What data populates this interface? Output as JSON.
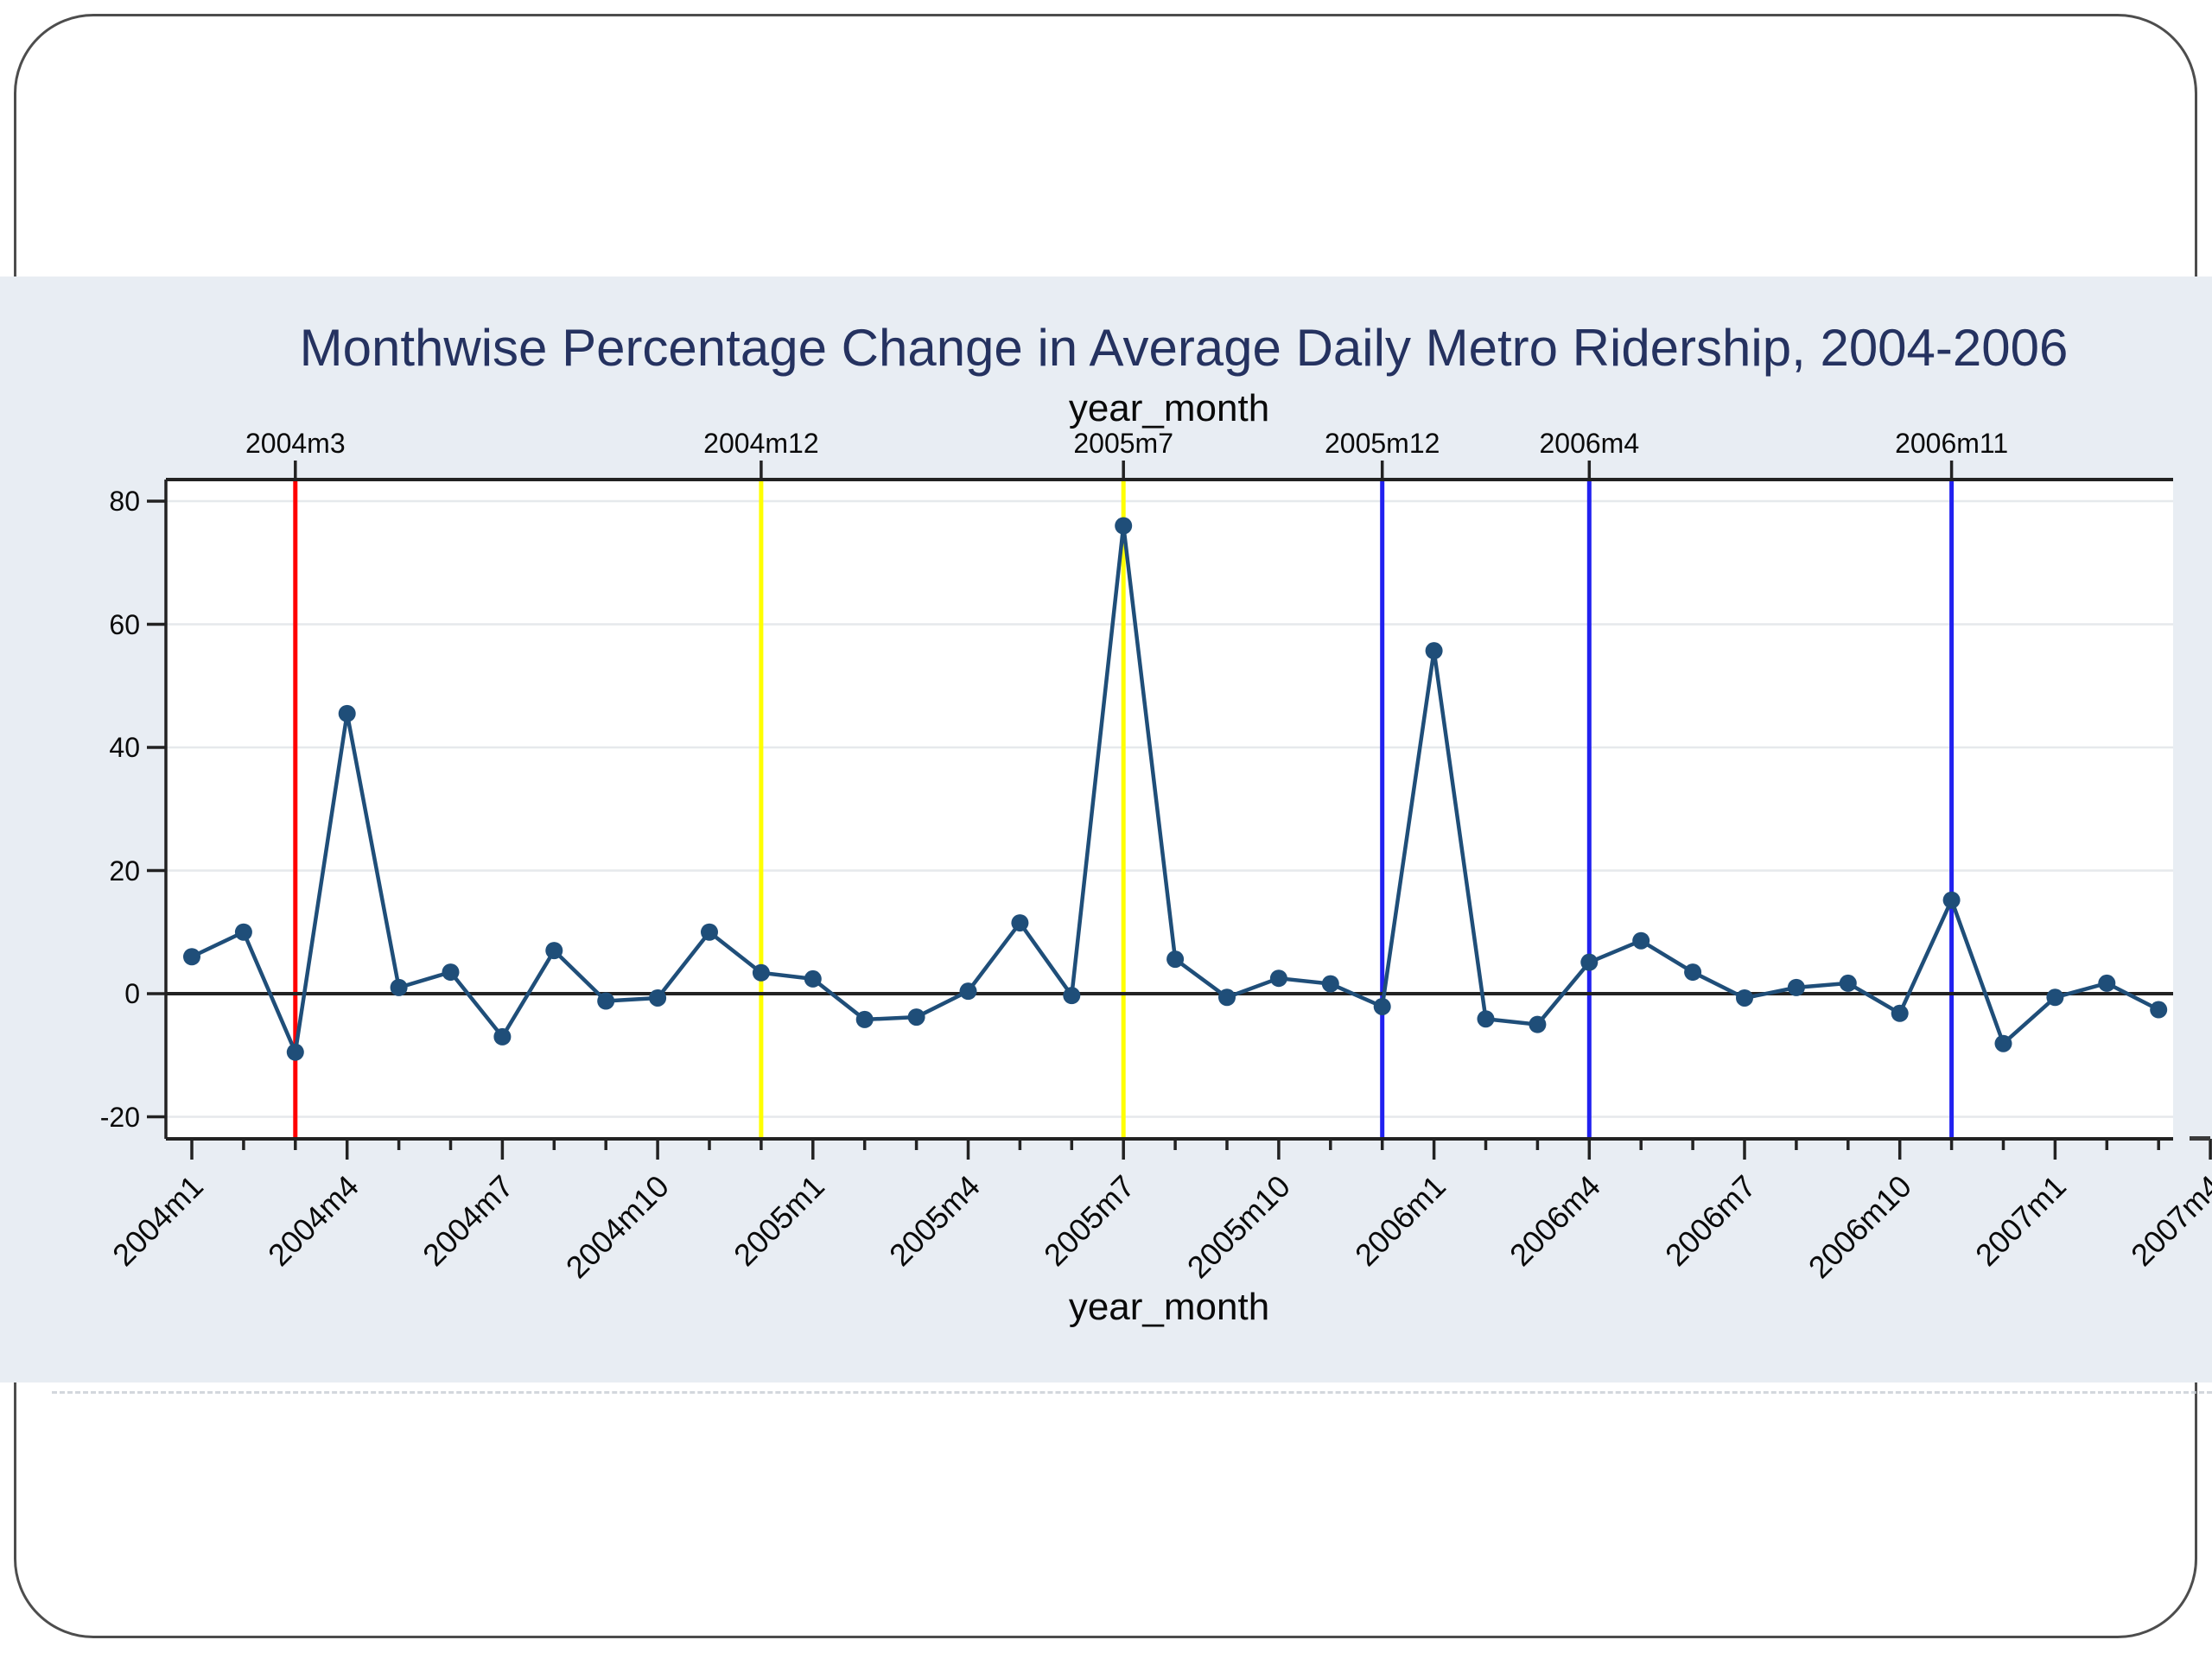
{
  "page": {
    "background": "#ffffff",
    "band_color": "#e8edf3",
    "frame_border_color": "#4d4d4d"
  },
  "title": "Monthwise Percentage Change in Average Daily Metro Ridership, 2004-2006",
  "title_color": "#253260",
  "axes": {
    "top_title": "year_month",
    "bottom_title": "year_month",
    "y_tick_labels": [
      "80",
      "60",
      "40",
      "20",
      "0",
      "-20"
    ],
    "x_major_tick_labels": [
      "2004m1",
      "2004m4",
      "2004m7",
      "2004m10",
      "2005m1",
      "2005m4",
      "2005m7",
      "2005m10",
      "2006m1",
      "2006m4",
      "2006m7",
      "2006m10",
      "2007m1",
      "2007m4"
    ],
    "top_reference_labels": [
      "2004m3",
      "2004m12",
      "2005m7",
      "2005m12",
      "2006m4",
      "2006m11"
    ]
  },
  "chart_data": {
    "type": "line",
    "title": "Monthwise Percentage Change in Average Daily Metro Ridership, 2004-2006",
    "xlabel": "year_month",
    "ylabel": "",
    "x": [
      "2004m1",
      "2004m2",
      "2004m3",
      "2004m4",
      "2004m5",
      "2004m6",
      "2004m7",
      "2004m8",
      "2004m9",
      "2004m10",
      "2004m11",
      "2004m12",
      "2005m1",
      "2005m2",
      "2005m3",
      "2005m4",
      "2005m5",
      "2005m6",
      "2005m7",
      "2005m8",
      "2005m9",
      "2005m10",
      "2005m11",
      "2005m12",
      "2006m1",
      "2006m2",
      "2006m3",
      "2006m4",
      "2006m5",
      "2006m6",
      "2006m7",
      "2006m8",
      "2006m9",
      "2006m10",
      "2006m11",
      "2006m12",
      "2007m1",
      "2007m2",
      "2007m3"
    ],
    "values": [
      6,
      10,
      -9.5,
      45.5,
      1,
      3.5,
      -7,
      7,
      -1.2,
      -0.7,
      10,
      3.4,
      2.4,
      -4.2,
      -3.8,
      0.4,
      11.5,
      -0.3,
      76,
      5.6,
      -0.6,
      2.5,
      1.6,
      -2.1,
      55.7,
      -4.1,
      -5,
      5.1,
      8.6,
      3.5,
      -0.7,
      1,
      1.7,
      -3.2,
      15.2,
      -8.1,
      -0.6,
      1.7,
      -2.6
    ],
    "ylim": [
      -25,
      85
    ],
    "yticks": [
      80,
      60,
      40,
      20,
      0,
      -20
    ],
    "x_major_ticks": [
      "2004m1",
      "2004m4",
      "2004m7",
      "2004m10",
      "2005m1",
      "2005m4",
      "2005m7",
      "2005m10",
      "2006m1",
      "2006m4",
      "2006m7",
      "2006m10",
      "2007m1",
      "2007m4"
    ],
    "grid": "horizontal",
    "legend": "none",
    "series_color": "#1f4e79",
    "zero_line": true,
    "reference_lines": [
      {
        "x": "2004m3",
        "color": "#ff0000"
      },
      {
        "x": "2004m12",
        "color": "#ffff00"
      },
      {
        "x": "2005m7",
        "color": "#ffff00"
      },
      {
        "x": "2005m12",
        "color": "#2121f0"
      },
      {
        "x": "2006m4",
        "color": "#2121f0"
      },
      {
        "x": "2006m11",
        "color": "#2121f0"
      }
    ]
  }
}
